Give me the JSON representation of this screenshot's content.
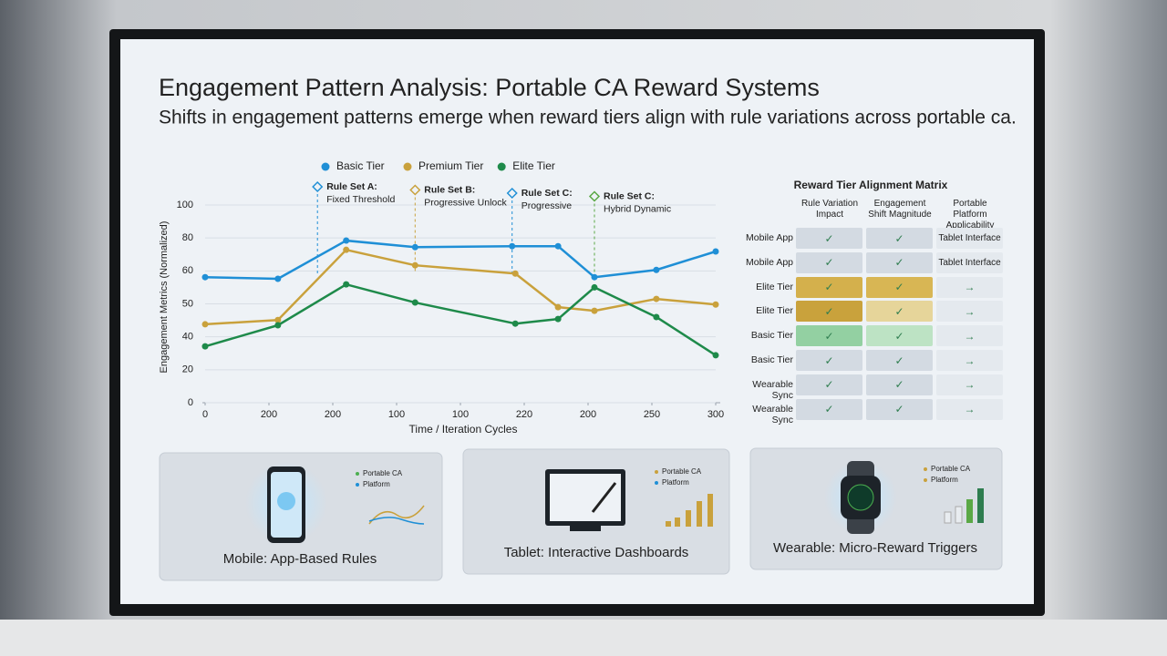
{
  "title": "Engagement Pattern Analysis: Portable CA Reward Systems",
  "subtitle": "Shifts in engagement patterns emerge when reward tiers align with rule variations across portable ca.",
  "chart_data": {
    "type": "line",
    "y_label": "Engagement Metrics (Normalized)",
    "x_label": "Time / Iteration Cycles",
    "xlim": [
      0,
      8
    ],
    "xticks": [
      0,
      {
        "value": 1,
        "label": "200"
      },
      {
        "value": 2,
        "label": "200"
      },
      {
        "value": 3,
        "label": "100"
      },
      {
        "value": 4,
        "label": "100"
      },
      {
        "value": 5,
        "label": "220"
      },
      {
        "value": 6,
        "label": "200"
      },
      {
        "value": 7,
        "label": "250"
      },
      {
        "value": 8,
        "label": "300"
      }
    ],
    "ylim": [
      0,
      6
    ],
    "yticks": [
      0,
      {
        "value": 1,
        "label": "20"
      },
      {
        "value": 2,
        "label": "40"
      },
      {
        "value": 3,
        "label": "50"
      },
      {
        "value": 4,
        "label": "60"
      },
      {
        "value": 5,
        "label": "80"
      },
      {
        "value": 6,
        "label": "100"
      }
    ],
    "grid": true,
    "legend_position": "top",
    "series": [
      {
        "name": "Basic Tier",
        "color": "#1f8fd6",
        "x": [
          0,
          1.14,
          2.21,
          3.29,
          4.81,
          5.53,
          6.1,
          7.07,
          8
        ],
        "values": [
          3.81,
          3.76,
          4.92,
          4.72,
          4.75,
          4.75,
          3.81,
          4.03,
          4.59
        ]
      },
      {
        "name": "Premium Tier",
        "color": "#c9a13c",
        "x": [
          0,
          1.14,
          2.21,
          3.29,
          4.86,
          5.53,
          6.1,
          7.07,
          8
        ],
        "values": [
          2.38,
          2.51,
          4.64,
          4.17,
          3.92,
          2.9,
          2.79,
          3.15,
          2.98
        ]
      },
      {
        "name": "Elite Tier",
        "color": "#1e8a4a",
        "x": [
          0,
          1.14,
          2.21,
          3.29,
          4.86,
          5.53,
          6.1,
          7.07,
          8
        ],
        "values": [
          1.71,
          2.35,
          3.59,
          3.04,
          2.4,
          2.54,
          3.5,
          2.6,
          1.44
        ]
      }
    ],
    "annotations": [
      {
        "label": "Rule Set A:",
        "detail": "Fixed Threshold",
        "x": 1.76,
        "color": "#1f8fd6"
      },
      {
        "label": "Rule Set B:",
        "detail": "Progressive Unlock",
        "x": 3.29,
        "color": "#c9a13c"
      },
      {
        "label": "Rule Set C:",
        "detail": "Progressive",
        "x": 4.81,
        "color": "#1f8fd6"
      },
      {
        "label": "Rule Set C:",
        "detail": "Hybrid Dynamic",
        "x": 6.1,
        "color": "#5aa845"
      }
    ]
  },
  "matrix": {
    "title": "Reward Tier Alignment Matrix",
    "columns": [
      "Rule Variation Impact",
      "Engagement Shift Magnitude",
      "Portable Platform Applicability"
    ],
    "rows": [
      {
        "label": "Mobile App",
        "cells": [
          "✓",
          "✓",
          "Tablet Interface"
        ],
        "fills": [
          "#d3dae2",
          "#d3dae2",
          "#e4e9ee"
        ]
      },
      {
        "label": "Mobile App",
        "cells": [
          "✓",
          "✓",
          "Tablet Interface"
        ],
        "fills": [
          "#d3dae2",
          "#d3dae2",
          "#e4e9ee"
        ]
      },
      {
        "label": "Elite Tier",
        "cells": [
          "✓",
          "✓",
          "→"
        ],
        "fills": [
          "#d4b04c",
          "#d8b654",
          "#e4e9ee"
        ]
      },
      {
        "label": "Elite Tier",
        "cells": [
          "✓",
          "✓",
          "→"
        ],
        "fills": [
          "#c9a23c",
          "#e6d59a",
          "#e4e9ee"
        ]
      },
      {
        "label": "Basic Tier",
        "cells": [
          "✓",
          "✓",
          "→"
        ],
        "fills": [
          "#93d0a2",
          "#bde3c4",
          "#e4e9ee"
        ]
      },
      {
        "label": "Basic Tier",
        "cells": [
          "✓",
          "✓",
          "→"
        ],
        "fills": [
          "#d3dae2",
          "#d3dae2",
          "#e4e9ee"
        ]
      },
      {
        "label": "Wearable Sync",
        "cells": [
          "✓",
          "✓",
          "→"
        ],
        "fills": [
          "#d3dae2",
          "#d3dae2",
          "#e4e9ee"
        ]
      },
      {
        "label": "Wearable Sync",
        "cells": [
          "✓",
          "✓",
          "→"
        ],
        "fills": [
          "#d3dae2",
          "#d3dae2",
          "#e4e9ee"
        ]
      }
    ]
  },
  "cards": [
    {
      "title": "Mobile: App-Based Rules",
      "legend": [
        "Portable CA",
        "Platform"
      ],
      "legend_colors": [
        "#4caf50",
        "#1f8fd6"
      ]
    },
    {
      "title": "Tablet: Interactive Dashboards",
      "legend": [
        "Portable CA",
        "Platform"
      ],
      "legend_colors": [
        "#c9a13c",
        "#1f8fd6"
      ]
    },
    {
      "title": "Wearable: Micro-Reward Triggers",
      "legend": [
        "Portable CA",
        "Platform"
      ],
      "legend_colors": [
        "#c9a13c",
        "#c9a13c"
      ]
    }
  ]
}
